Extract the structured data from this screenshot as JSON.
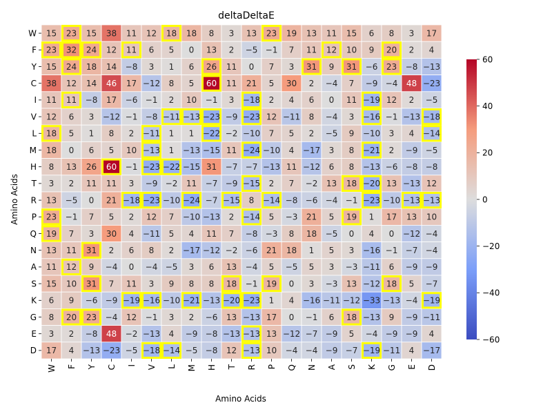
{
  "chart_data": {
    "type": "heatmap",
    "title": "deltaDeltaE",
    "xlabel": "Amino Acids",
    "ylabel": "Amino Acids",
    "x_categories": [
      "W",
      "F",
      "Y",
      "C",
      "I",
      "V",
      "L",
      "M",
      "H",
      "T",
      "R",
      "P",
      "Q",
      "N",
      "A",
      "S",
      "K",
      "G",
      "E",
      "D"
    ],
    "y_categories": [
      "W",
      "F",
      "Y",
      "C",
      "I",
      "V",
      "L",
      "M",
      "H",
      "T",
      "R",
      "P",
      "Q",
      "N",
      "A",
      "S",
      "K",
      "G",
      "E",
      "D"
    ],
    "values": [
      [
        15,
        23,
        15,
        38,
        11,
        12,
        18,
        18,
        8,
        3,
        13,
        23,
        19,
        13,
        11,
        15,
        6,
        8,
        3,
        17
      ],
      [
        23,
        32,
        24,
        12,
        11,
        6,
        5,
        0,
        13,
        2,
        -5,
        -1,
        7,
        11,
        12,
        10,
        9,
        20,
        2,
        4
      ],
      [
        15,
        24,
        18,
        14,
        -8,
        3,
        1,
        6,
        26,
        11,
        0,
        7,
        3,
        31,
        9,
        31,
        -6,
        23,
        -8,
        -13
      ],
      [
        38,
        12,
        14,
        46,
        17,
        -12,
        8,
        5,
        60,
        11,
        21,
        5,
        30,
        2,
        -4,
        7,
        -9,
        -4,
        48,
        -23
      ],
      [
        11,
        11,
        -8,
        17,
        -6,
        -1,
        2,
        10,
        -1,
        3,
        -18,
        2,
        4,
        6,
        0,
        11,
        -19,
        12,
        2,
        -5
      ],
      [
        12,
        6,
        3,
        -12,
        -1,
        -8,
        -11,
        -13,
        -23,
        -9,
        -23,
        12,
        -11,
        8,
        -4,
        3,
        -16,
        -1,
        -13,
        -18
      ],
      [
        18,
        5,
        1,
        8,
        2,
        -11,
        1,
        1,
        -22,
        -2,
        -10,
        7,
        5,
        2,
        -5,
        9,
        -10,
        3,
        4,
        -14
      ],
      [
        18,
        0,
        6,
        5,
        10,
        -13,
        1,
        -13,
        -15,
        11,
        -24,
        -10,
        4,
        -17,
        3,
        8,
        -21,
        2,
        -9,
        -5
      ],
      [
        8,
        13,
        26,
        60,
        -1,
        -23,
        -22,
        -15,
        31,
        -7,
        -7,
        -13,
        11,
        -12,
        6,
        8,
        -13,
        -6,
        -8,
        -8
      ],
      [
        3,
        2,
        11,
        11,
        3,
        -9,
        -2,
        11,
        -7,
        -9,
        -15,
        2,
        7,
        -2,
        13,
        18,
        -20,
        13,
        -13,
        12
      ],
      [
        13,
        -5,
        0,
        21,
        -18,
        -23,
        -10,
        -24,
        -7,
        -15,
        8,
        -14,
        -8,
        -6,
        -4,
        -1,
        -23,
        -10,
        -13,
        -13
      ],
      [
        23,
        -1,
        7,
        5,
        2,
        12,
        7,
        -10,
        -13,
        2,
        -14,
        5,
        -3,
        21,
        5,
        19,
        1,
        17,
        13,
        10
      ],
      [
        19,
        7,
        3,
        30,
        4,
        -11,
        5,
        4,
        11,
        7,
        -8,
        -3,
        8,
        18,
        -5,
        0,
        4,
        0,
        -12,
        -4
      ],
      [
        13,
        11,
        31,
        2,
        6,
        8,
        2,
        -17,
        -12,
        -2,
        -6,
        21,
        18,
        1,
        5,
        3,
        -16,
        -1,
        -7,
        -4
      ],
      [
        11,
        12,
        9,
        -4,
        0,
        -4,
        -5,
        3,
        6,
        13,
        -4,
        5,
        -5,
        5,
        3,
        -3,
        -11,
        6,
        -9,
        -9
      ],
      [
        15,
        10,
        31,
        7,
        11,
        3,
        9,
        8,
        8,
        18,
        -1,
        19,
        0,
        3,
        -3,
        13,
        -12,
        18,
        5,
        -7
      ],
      [
        6,
        9,
        -6,
        -9,
        -19,
        -16,
        -10,
        -21,
        -13,
        -20,
        -23,
        1,
        4,
        -16,
        -11,
        -12,
        -33,
        -13,
        -4,
        -19
      ],
      [
        8,
        20,
        23,
        -4,
        12,
        -1,
        3,
        2,
        -6,
        13,
        -13,
        17,
        0,
        -1,
        6,
        18,
        -13,
        9,
        -9,
        -11
      ],
      [
        3,
        2,
        -8,
        48,
        -2,
        -13,
        4,
        -9,
        -8,
        -13,
        -13,
        13,
        -12,
        -7,
        -9,
        5,
        -4,
        -9,
        -9,
        4
      ],
      [
        17,
        4,
        -13,
        -23,
        -5,
        -18,
        -14,
        -5,
        -8,
        12,
        -13,
        10,
        -4,
        -4,
        -9,
        -7,
        -19,
        -11,
        4,
        -17
      ]
    ],
    "highlighted_cells": [
      [
        0,
        1
      ],
      [
        0,
        6
      ],
      [
        0,
        11
      ],
      [
        1,
        0
      ],
      [
        1,
        1
      ],
      [
        1,
        2
      ],
      [
        1,
        4
      ],
      [
        1,
        14
      ],
      [
        1,
        17
      ],
      [
        2,
        1
      ],
      [
        2,
        8
      ],
      [
        2,
        13
      ],
      [
        2,
        15
      ],
      [
        2,
        17
      ],
      [
        3,
        8
      ],
      [
        4,
        1
      ],
      [
        4,
        10
      ],
      [
        4,
        16
      ],
      [
        5,
        6
      ],
      [
        5,
        7
      ],
      [
        5,
        8
      ],
      [
        5,
        10
      ],
      [
        5,
        16
      ],
      [
        5,
        19
      ],
      [
        6,
        0
      ],
      [
        6,
        5
      ],
      [
        6,
        8
      ],
      [
        6,
        19
      ],
      [
        7,
        5
      ],
      [
        7,
        10
      ],
      [
        7,
        16
      ],
      [
        8,
        3
      ],
      [
        8,
        5
      ],
      [
        8,
        6
      ],
      [
        9,
        10
      ],
      [
        9,
        15
      ],
      [
        9,
        16
      ],
      [
        10,
        4
      ],
      [
        10,
        5
      ],
      [
        10,
        7
      ],
      [
        10,
        9
      ],
      [
        10,
        11
      ],
      [
        10,
        16
      ],
      [
        10,
        18
      ],
      [
        10,
        19
      ],
      [
        11,
        0
      ],
      [
        11,
        10
      ],
      [
        11,
        15
      ],
      [
        12,
        0
      ],
      [
        13,
        2
      ],
      [
        14,
        1
      ],
      [
        15,
        2
      ],
      [
        15,
        9
      ],
      [
        15,
        11
      ],
      [
        15,
        17
      ],
      [
        16,
        4
      ],
      [
        16,
        5
      ],
      [
        16,
        7
      ],
      [
        16,
        9
      ],
      [
        16,
        10
      ],
      [
        16,
        19
      ],
      [
        17,
        1
      ],
      [
        17,
        2
      ],
      [
        17,
        15
      ],
      [
        18,
        10
      ],
      [
        19,
        5
      ],
      [
        19,
        6
      ],
      [
        19,
        10
      ],
      [
        19,
        16
      ]
    ],
    "vmin": -60,
    "vmax": 60,
    "colormap": "coolwarm",
    "highlight_color": "#ffff00",
    "colorbar_ticks": [
      60,
      40,
      20,
      0,
      -20,
      -40,
      -60
    ],
    "colorbar_tick_labels": [
      "60",
      "40",
      "20",
      "0",
      "−20",
      "−40",
      "−60"
    ],
    "grid": false
  }
}
